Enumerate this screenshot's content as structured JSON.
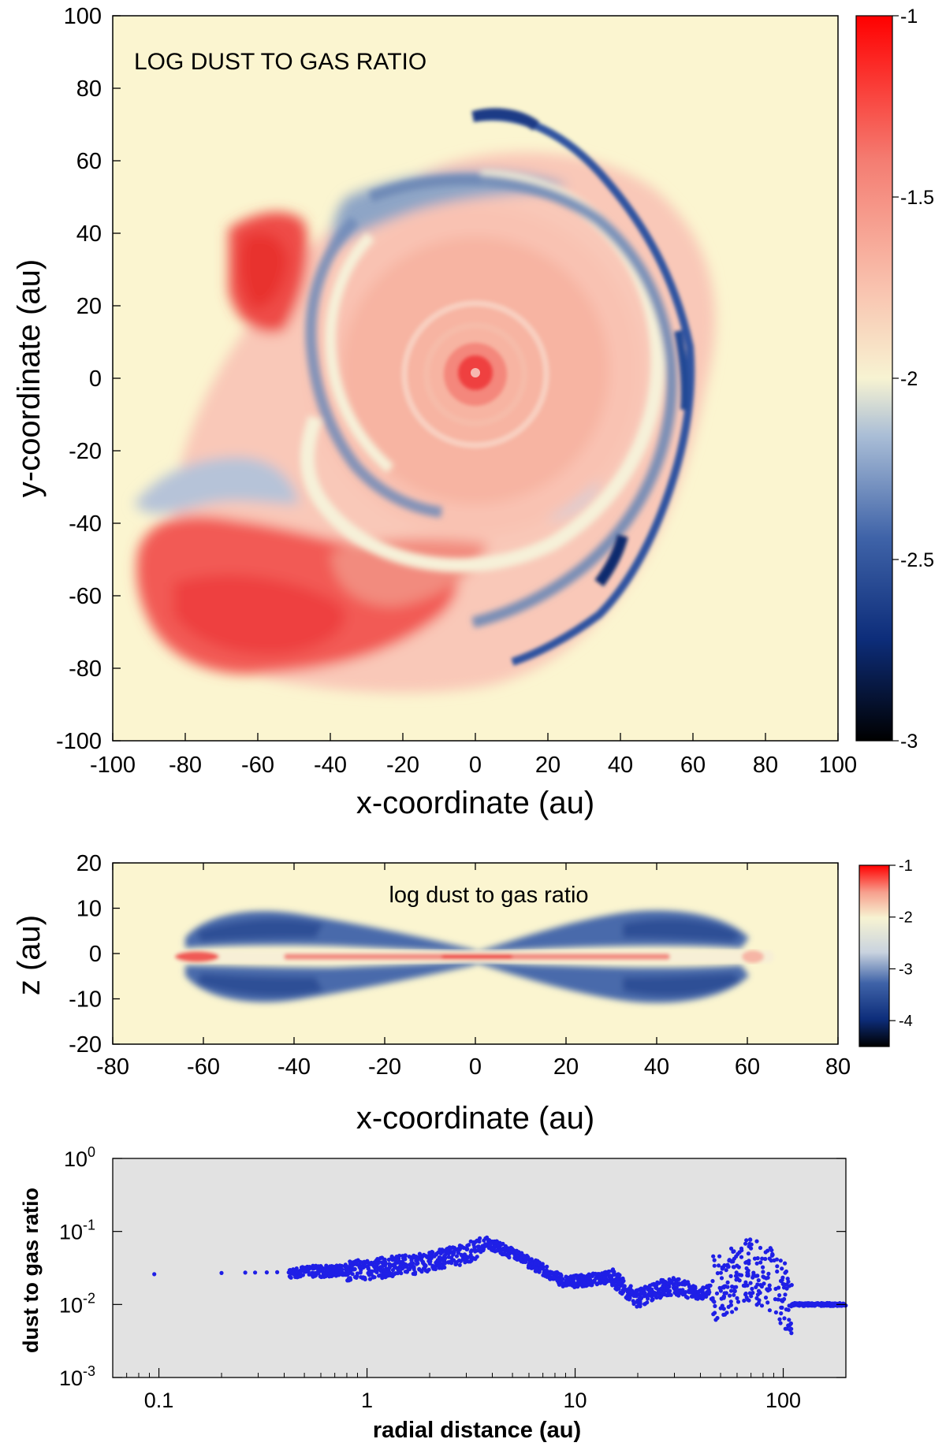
{
  "chart_data": [
    {
      "type": "heatmap",
      "title": "LOG DUST TO GAS RATIO",
      "xlabel": "x-coordinate (au)",
      "ylabel": "y-coordinate (au)",
      "xlim": [
        -100,
        100
      ],
      "ylim": [
        -100,
        100
      ],
      "xticks": [
        "-100",
        "-80",
        "-60",
        "-40",
        "-20",
        "0",
        "20",
        "40",
        "60",
        "80",
        "100"
      ],
      "yticks": [
        "100",
        "80",
        "60",
        "40",
        "20",
        "0",
        "-20",
        "-40",
        "-60",
        "-80",
        "-100"
      ],
      "colorbar": {
        "range": [
          -3,
          -1
        ],
        "ticks": [
          "-1",
          "-1.5",
          "-2",
          "-2.5",
          "-3"
        ]
      },
      "colormap": [
        "#000000",
        "#0d2d7a",
        "#3f63a8",
        "#a9bdd6",
        "#f7f3d2",
        "#f9c4b0",
        "#f47d72",
        "#ff0000"
      ],
      "background_value": -2
    },
    {
      "type": "heatmap",
      "title": "log dust to gas ratio",
      "xlabel": "x-coordinate (au)",
      "ylabel": "z (au)",
      "xlim": [
        -80,
        80
      ],
      "ylim": [
        -20,
        20
      ],
      "xticks": [
        "-80",
        "-60",
        "-40",
        "-20",
        "0",
        "20",
        "40",
        "60",
        "80"
      ],
      "yticks": [
        "20",
        "10",
        "0",
        "-10",
        "-20"
      ],
      "colorbar": {
        "range": [
          -4.5,
          -1
        ],
        "ticks": [
          "-1",
          "-2",
          "-3",
          "-4"
        ]
      },
      "background_value": -2
    },
    {
      "type": "scatter",
      "xlabel": "radial distance (au)",
      "ylabel": "dust to gas ratio",
      "xscale": "log",
      "yscale": "log",
      "xlim": [
        0.06,
        200
      ],
      "ylim": [
        0.001,
        1
      ],
      "xticks": [
        "0.1",
        "1",
        "10",
        "100"
      ],
      "yticks": [
        {
          "base": "10",
          "exp": "0"
        },
        {
          "base": "10",
          "exp": "-1"
        },
        {
          "base": "10",
          "exp": "-2"
        },
        {
          "base": "10",
          "exp": "-3"
        }
      ],
      "marker_color": "#1f1fe6",
      "background": "#e2e2e2",
      "profile": [
        {
          "x": 0.095,
          "y": 0.026
        },
        {
          "x": 0.2,
          "y": 0.027
        },
        {
          "x": 0.5,
          "y": 0.028
        },
        {
          "x": 1.0,
          "y": 0.03
        },
        {
          "x": 2.0,
          "y": 0.038
        },
        {
          "x": 3.0,
          "y": 0.05
        },
        {
          "x": 3.8,
          "y": 0.07
        },
        {
          "x": 5.0,
          "y": 0.05
        },
        {
          "x": 6.0,
          "y": 0.038
        },
        {
          "x": 7.0,
          "y": 0.03
        },
        {
          "x": 9.0,
          "y": 0.02
        },
        {
          "x": 12.0,
          "y": 0.022
        },
        {
          "x": 15.0,
          "y": 0.024
        },
        {
          "x": 20.0,
          "y": 0.012
        },
        {
          "x": 25.0,
          "y": 0.016
        },
        {
          "x": 30.0,
          "y": 0.018
        },
        {
          "x": 40.0,
          "y": 0.014
        },
        {
          "x": 55.0,
          "y": 0.02
        },
        {
          "x": 70.0,
          "y": 0.03
        },
        {
          "x": 90.0,
          "y": 0.02
        },
        {
          "x": 110.0,
          "y": 0.01
        },
        {
          "x": 200.0,
          "y": 0.01
        }
      ]
    }
  ]
}
